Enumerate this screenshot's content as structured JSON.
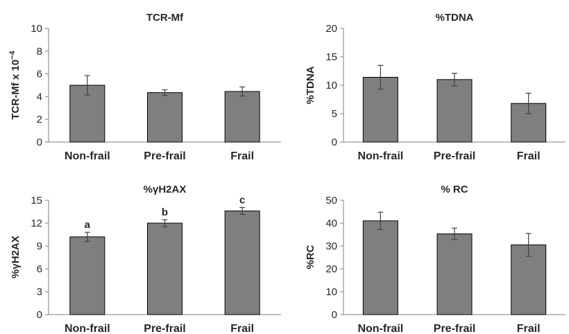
{
  "figure": {
    "panels": [
      {
        "id": "tcr-mf",
        "ylabel_base": "TCR-Mf x 10",
        "ylabel_sup": "−4"
      },
      {
        "id": "tdna",
        "ylabel_base": "%TDNA",
        "ylabel_sup": ""
      },
      {
        "id": "gh2ax",
        "ylabel_base": "%γH2AX",
        "ylabel_sup": ""
      },
      {
        "id": "rc",
        "ylabel_base": "%RC",
        "ylabel_sup": ""
      }
    ]
  },
  "colors": {
    "bar_fill": "#7f7f7f",
    "bar_stroke": "#000000",
    "axis": "#7f7f7f",
    "error_bar": "#404040",
    "text": "#262626"
  },
  "chart_data": [
    {
      "type": "bar",
      "title": "TCR-Mf",
      "categories": [
        "Non-frail",
        "Pre-frail",
        "Frail"
      ],
      "values": [
        5.0,
        4.35,
        4.45
      ],
      "errors": [
        0.85,
        0.25,
        0.4
      ],
      "ylim": [
        0,
        10
      ],
      "yticks": [
        0,
        2,
        4,
        6,
        8,
        10
      ],
      "ylabel": "TCR-Mf x 10−4",
      "xlabel": "",
      "annotations": [],
      "grid": false,
      "legend": "none"
    },
    {
      "type": "bar",
      "title": "%TDNA",
      "categories": [
        "Non-frail",
        "Pre-frail",
        "Frail"
      ],
      "values": [
        11.4,
        11.0,
        6.8
      ],
      "errors": [
        2.1,
        1.1,
        1.8
      ],
      "ylim": [
        0,
        20
      ],
      "yticks": [
        0,
        5,
        10,
        15,
        20
      ],
      "ylabel": "%TDNA",
      "xlabel": "",
      "annotations": [],
      "grid": false,
      "legend": "none"
    },
    {
      "type": "bar",
      "title": "%γH2AX",
      "categories": [
        "Non-frail",
        "Pre-frail",
        "Frail"
      ],
      "values": [
        10.2,
        12.0,
        13.6
      ],
      "errors": [
        0.6,
        0.45,
        0.45
      ],
      "ylim": [
        0,
        15
      ],
      "yticks": [
        0,
        3,
        6,
        9,
        12,
        15
      ],
      "ylabel": "%γH2AX",
      "xlabel": "",
      "annotations": [
        "a",
        "b",
        "c"
      ],
      "grid": false,
      "legend": "none"
    },
    {
      "type": "bar",
      "title": "% RC",
      "categories": [
        "Non-frail",
        "Pre-frail",
        "Frail"
      ],
      "values": [
        41.0,
        35.3,
        30.5
      ],
      "errors": [
        3.8,
        2.5,
        5.0
      ],
      "ylim": [
        0,
        50
      ],
      "yticks": [
        0,
        10,
        20,
        30,
        40,
        50
      ],
      "ylabel": "%RC",
      "xlabel": "",
      "annotations": [],
      "grid": false,
      "legend": "none"
    }
  ]
}
